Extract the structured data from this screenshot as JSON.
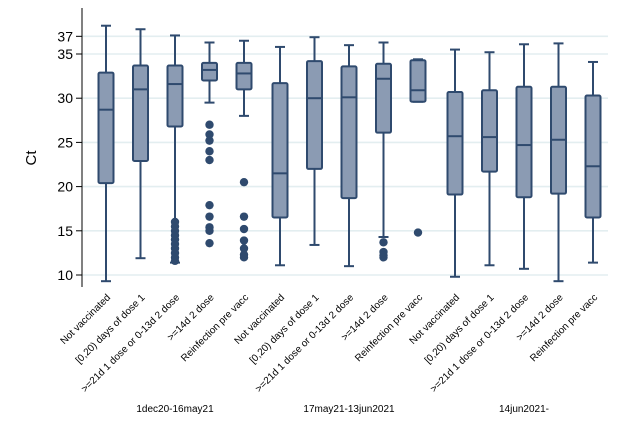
{
  "chart_data": {
    "type": "box",
    "title": "",
    "ylabel": "Ct",
    "xlabel": "",
    "ylim": [
      9,
      39
    ],
    "yticks": [
      10,
      15,
      20,
      25,
      30,
      35,
      37
    ],
    "grid": true,
    "colors": {
      "box_fill": "#8b9bb3",
      "box_stroke": "#2f4a6e",
      "gridline": "#e3eef0",
      "axis": "#000000"
    },
    "categories": [
      "Not vaccinated",
      "[0,20) days of dose 1",
      ">=21d 1 dose or 0-13d 2 dose",
      ">=14d 2 dose",
      "Reinfection pre vacc"
    ],
    "groups": [
      {
        "name": "1dec20-16may21",
        "boxes": [
          {
            "min": 9.3,
            "q1": 20.4,
            "median": 28.7,
            "q3": 32.9,
            "max": 38.2,
            "outliers": []
          },
          {
            "min": 11.9,
            "q1": 22.9,
            "median": 31.0,
            "q3": 33.7,
            "max": 37.8,
            "outliers": []
          },
          {
            "min": 11.4,
            "q1": 26.8,
            "median": 31.6,
            "q3": 33.7,
            "max": 37.1,
            "outliers": [
              16.0,
              15.5,
              15.0,
              14.5,
              14.0,
              13.5,
              13.0,
              12.5,
              12.0,
              11.6
            ]
          },
          {
            "min": 29.5,
            "q1": 32.0,
            "median": 33.2,
            "q3": 34.0,
            "max": 36.3,
            "outliers": [
              27.0,
              25.9,
              25.2,
              24.0,
              23.0,
              17.9,
              16.6,
              15.4,
              15.0,
              13.6
            ]
          },
          {
            "min": 28.0,
            "q1": 31.0,
            "median": 32.8,
            "q3": 34.0,
            "max": 36.5,
            "outliers": [
              20.5,
              16.6,
              15.2,
              13.9,
              13.0,
              12.3,
              12.0
            ]
          }
        ]
      },
      {
        "name": "17may21-13jun2021",
        "boxes": [
          {
            "min": 11.1,
            "q1": 16.5,
            "median": 21.5,
            "q3": 31.7,
            "max": 35.8,
            "outliers": []
          },
          {
            "min": 13.4,
            "q1": 22.0,
            "median": 30.0,
            "q3": 34.2,
            "max": 36.9,
            "outliers": []
          },
          {
            "min": 11.0,
            "q1": 18.7,
            "median": 30.1,
            "q3": 33.6,
            "max": 36.0,
            "outliers": []
          },
          {
            "min": 14.3,
            "q1": 26.1,
            "median": 32.2,
            "q3": 33.9,
            "max": 36.3,
            "outliers": [
              13.7,
              12.6,
              12.2,
              12.0
            ]
          },
          {
            "min": 29.6,
            "q1": 29.6,
            "median": 30.9,
            "q3": 34.3,
            "max": 34.4,
            "outliers": [
              14.8
            ]
          }
        ]
      },
      {
        "name": "14jun2021-",
        "boxes": [
          {
            "min": 9.8,
            "q1": 19.1,
            "median": 25.7,
            "q3": 30.7,
            "max": 35.5,
            "outliers": []
          },
          {
            "min": 11.1,
            "q1": 21.7,
            "median": 25.6,
            "q3": 30.9,
            "max": 35.2,
            "outliers": []
          },
          {
            "min": 10.7,
            "q1": 18.8,
            "median": 24.7,
            "q3": 31.3,
            "max": 36.1,
            "outliers": []
          },
          {
            "min": 9.3,
            "q1": 19.2,
            "median": 25.3,
            "q3": 31.3,
            "max": 36.2,
            "outliers": []
          },
          {
            "min": 11.4,
            "q1": 16.5,
            "median": 22.3,
            "q3": 30.3,
            "max": 34.1,
            "outliers": []
          }
        ]
      }
    ]
  }
}
